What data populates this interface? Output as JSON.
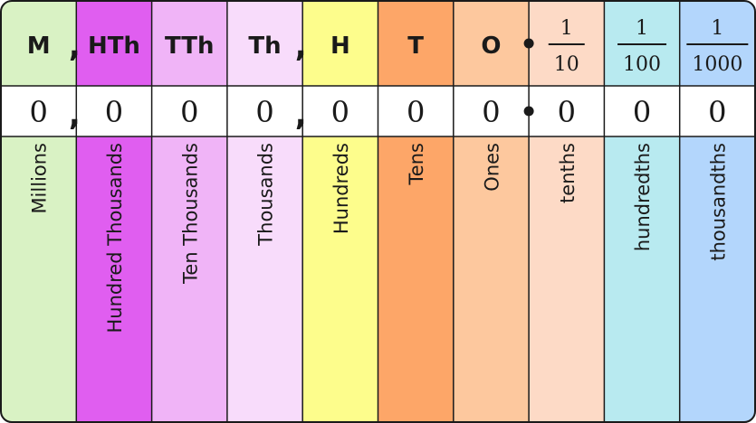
{
  "columns": [
    {
      "abbr": "M",
      "digit": "0",
      "name": "Millions",
      "color": "#d9f2c4"
    },
    {
      "abbr": "HTh",
      "digit": "0",
      "name": "Hundred Thousands",
      "color": "#e05ef0"
    },
    {
      "abbr": "TTh",
      "digit": "0",
      "name": "Ten Thousands",
      "color": "#f0b4f7"
    },
    {
      "abbr": "Th",
      "digit": "0",
      "name": "Thousands",
      "color": "#f8dcfb"
    },
    {
      "abbr": "H",
      "digit": "0",
      "name": "Hundreds",
      "color": "#fdfd8c"
    },
    {
      "abbr": "T",
      "digit": "0",
      "name": "Tens",
      "color": "#fda668"
    },
    {
      "abbr": "O",
      "digit": "0",
      "name": "Ones",
      "color": "#fdc89e"
    },
    {
      "num": "1",
      "den": "10",
      "digit": "0",
      "name": "tenths",
      "color": "#fddac6"
    },
    {
      "num": "1",
      "den": "100",
      "digit": "0",
      "name": "hundredths",
      "color": "#b8eaf0"
    },
    {
      "num": "1",
      "den": "1000",
      "digit": "0",
      "name": "thousandths",
      "color": "#b3d6fc"
    }
  ],
  "separators": [
    {
      "after_column": 0,
      "symbol": ","
    },
    {
      "after_column": 3,
      "symbol": ","
    },
    {
      "after_column": 6,
      "symbol": "•"
    }
  ],
  "border_color": "#1a1a1a"
}
